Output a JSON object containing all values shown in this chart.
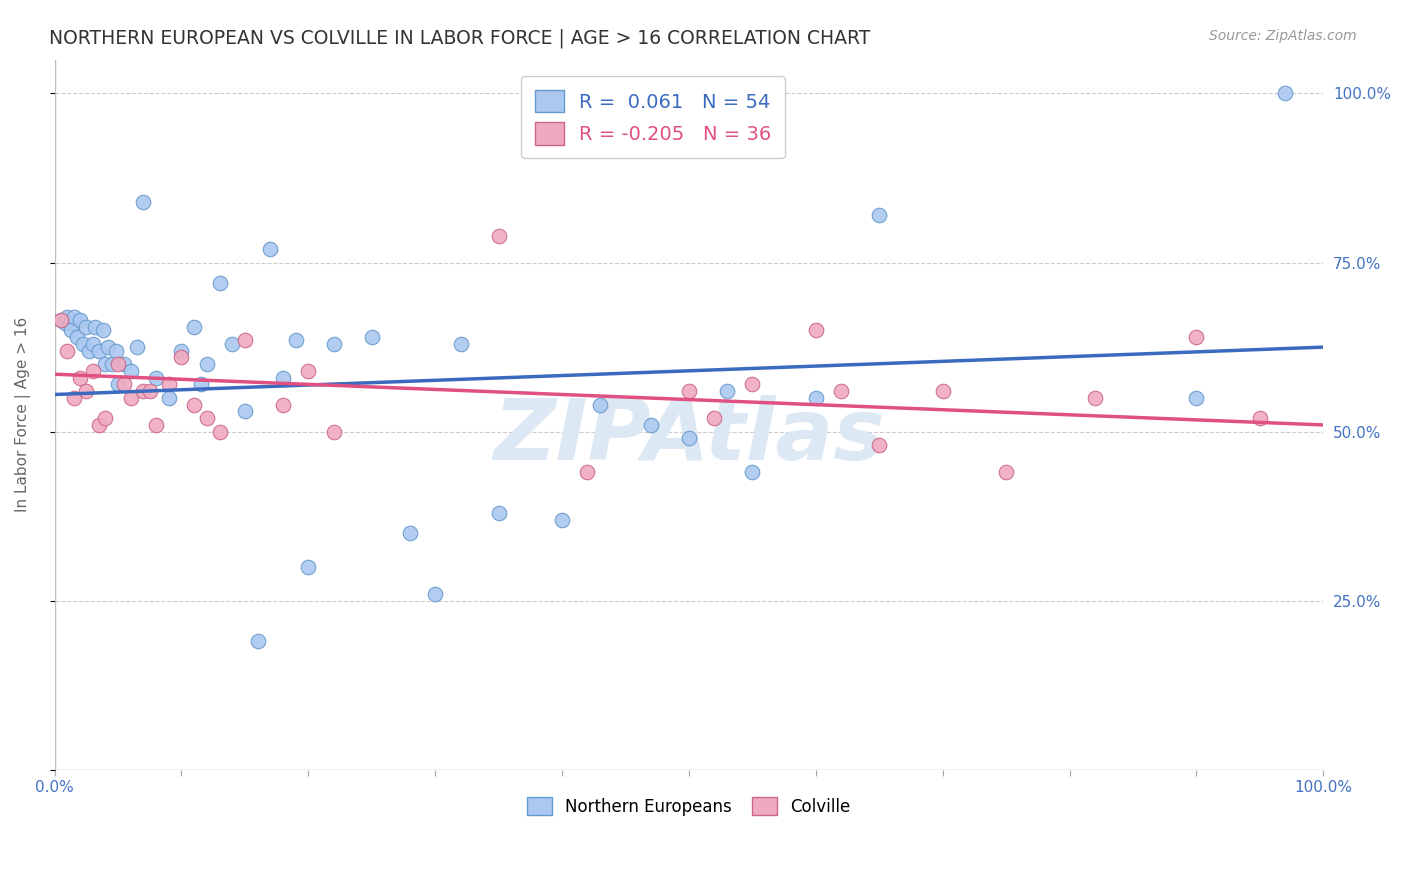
{
  "title": "NORTHERN EUROPEAN VS COLVILLE IN LABOR FORCE | AGE > 16 CORRELATION CHART",
  "source_text": "Source: ZipAtlas.com",
  "ylabel": "In Labor Force | Age > 16",
  "legend_R_blue": "0.061",
  "legend_N_blue": "54",
  "legend_R_pink": "-0.205",
  "legend_N_pink": "36",
  "blue_line_color": "#3a6bbf",
  "pink_line_color": "#e05080",
  "blue_dot_facecolor": "#aac8f0",
  "blue_dot_edgecolor": "#6699cc",
  "pink_dot_facecolor": "#f0aac0",
  "pink_dot_edgecolor": "#cc6688",
  "background_color": "#ffffff",
  "grid_color": "#cccccc",
  "title_color": "#333333",
  "axis_label_color": "#666666",
  "right_tick_color": "#4472c4",
  "watermark_color": "#dde8f5",
  "blue_scatter_x": [
    0.005,
    0.008,
    0.01,
    0.012,
    0.013,
    0.015,
    0.018,
    0.02,
    0.022,
    0.025,
    0.027,
    0.03,
    0.032,
    0.035,
    0.038,
    0.04,
    0.042,
    0.045,
    0.048,
    0.05,
    0.055,
    0.06,
    0.065,
    0.07,
    0.08,
    0.09,
    0.1,
    0.11,
    0.115,
    0.12,
    0.13,
    0.14,
    0.15,
    0.16,
    0.17,
    0.18,
    0.19,
    0.2,
    0.22,
    0.25,
    0.28,
    0.3,
    0.32,
    0.35,
    0.4,
    0.43,
    0.47,
    0.5,
    0.53,
    0.55,
    0.6,
    0.65,
    0.9,
    0.97
  ],
  "blue_scatter_y": [
    0.665,
    0.66,
    0.67,
    0.66,
    0.65,
    0.67,
    0.64,
    0.665,
    0.63,
    0.655,
    0.62,
    0.63,
    0.655,
    0.62,
    0.65,
    0.6,
    0.625,
    0.6,
    0.62,
    0.57,
    0.6,
    0.59,
    0.625,
    0.84,
    0.58,
    0.55,
    0.62,
    0.655,
    0.57,
    0.6,
    0.72,
    0.63,
    0.53,
    0.19,
    0.77,
    0.58,
    0.635,
    0.3,
    0.63,
    0.64,
    0.35,
    0.26,
    0.63,
    0.38,
    0.37,
    0.54,
    0.51,
    0.49,
    0.56,
    0.44,
    0.55,
    0.82,
    0.55,
    1.0
  ],
  "pink_scatter_x": [
    0.005,
    0.01,
    0.015,
    0.02,
    0.025,
    0.03,
    0.035,
    0.04,
    0.05,
    0.055,
    0.06,
    0.07,
    0.075,
    0.08,
    0.09,
    0.1,
    0.11,
    0.12,
    0.13,
    0.15,
    0.18,
    0.2,
    0.22,
    0.35,
    0.42,
    0.5,
    0.52,
    0.55,
    0.6,
    0.62,
    0.65,
    0.7,
    0.75,
    0.82,
    0.9,
    0.95
  ],
  "pink_scatter_y": [
    0.665,
    0.62,
    0.55,
    0.58,
    0.56,
    0.59,
    0.51,
    0.52,
    0.6,
    0.57,
    0.55,
    0.56,
    0.56,
    0.51,
    0.57,
    0.61,
    0.54,
    0.52,
    0.5,
    0.635,
    0.54,
    0.59,
    0.5,
    0.79,
    0.44,
    0.56,
    0.52,
    0.57,
    0.65,
    0.56,
    0.48,
    0.56,
    0.44,
    0.55,
    0.64,
    0.52
  ]
}
